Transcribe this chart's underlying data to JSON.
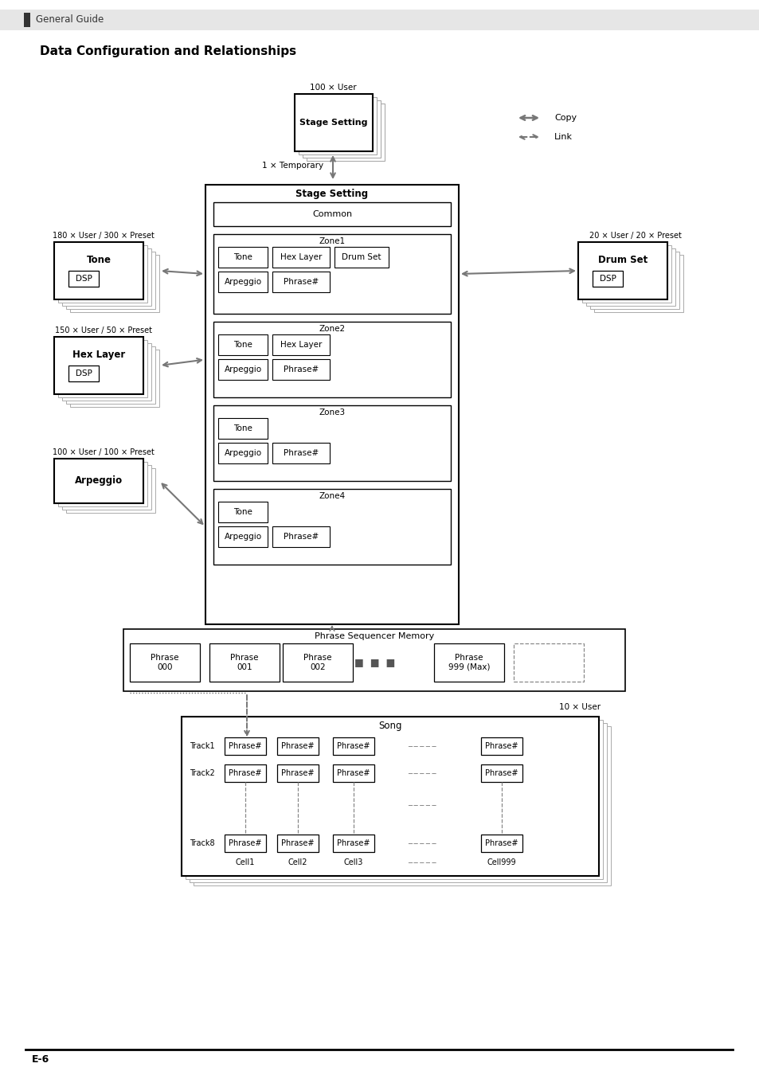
{
  "title": "Data Configuration and Relationships",
  "header_text": "General Guide",
  "bg_color": "#ffffff",
  "gray_bg": "#e8e8e8",
  "footer_text": "E-6",
  "legend_copy_text": "Copy",
  "legend_link_text": "Link",
  "stage_setting_100user_label": "100 × User",
  "stage_setting_label": "Stage Setting",
  "stage_setting_common": "Common",
  "temp_label": "1 × Temporary",
  "tone_label": "Tone",
  "tone_count": "180 × User / 300 × Preset",
  "dsp_label": "DSP",
  "hex_layer_label": "Hex Layer",
  "hex_count": "150 × User / 50 × Preset",
  "arpeggio_label": "Arpeggio",
  "arp_count": "100 × User / 100 × Preset",
  "drum_set_label": "Drum Set",
  "drum_count": "20 × User / 20 × Preset",
  "phrase_seq_label": "Phrase Sequencer Memory",
  "song_label": "Song",
  "song_count": "10 × User"
}
